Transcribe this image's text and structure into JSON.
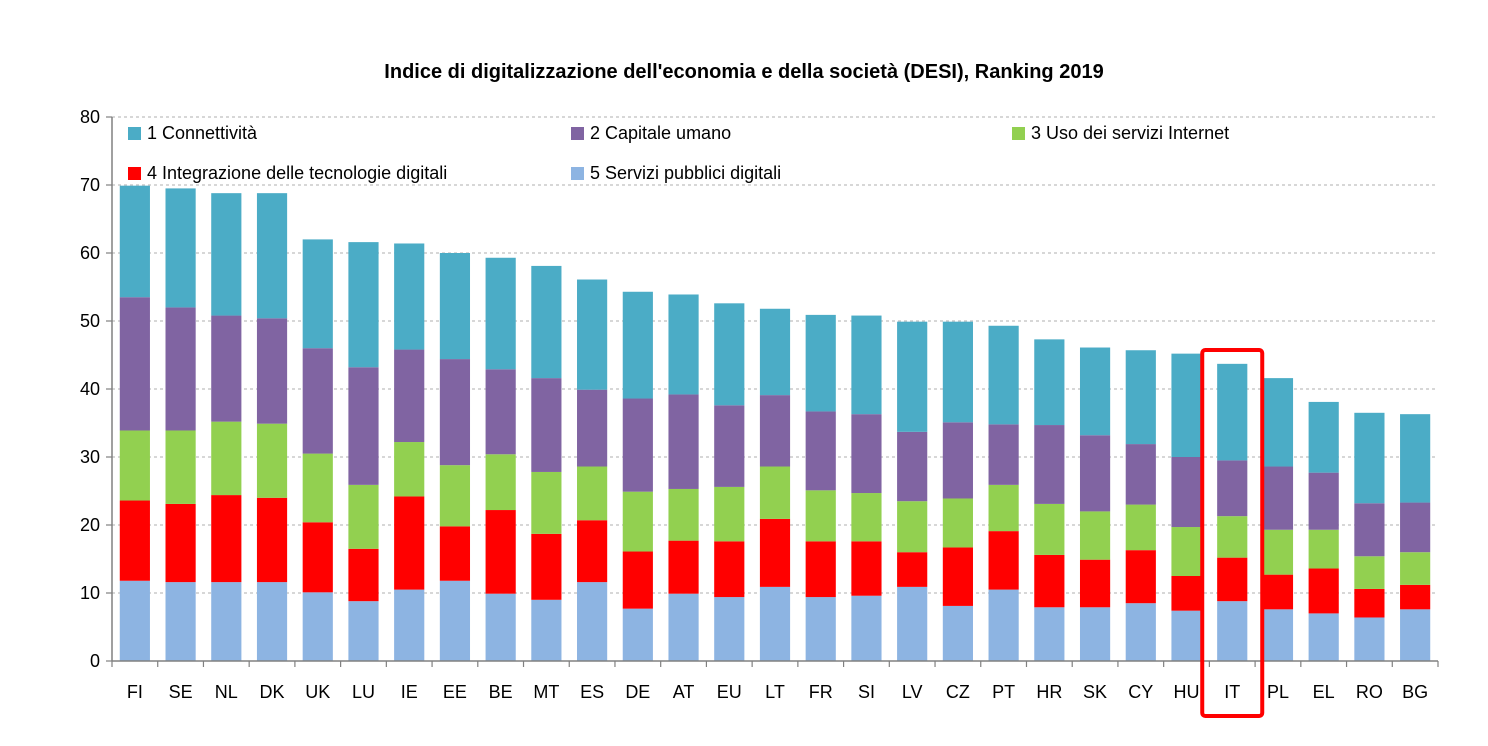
{
  "chart_data": {
    "type": "bar",
    "stacked": true,
    "title": "Indice di digitalizzazione dell'economia e della società (DESI), Ranking 2019",
    "xlabel": "",
    "ylabel": "",
    "ylim": [
      0,
      80
    ],
    "yticks": [
      0,
      10,
      20,
      30,
      40,
      50,
      60,
      70,
      80
    ],
    "grid": true,
    "legend_placement": "top",
    "highlight_category": "IT",
    "highlight_color": "#ff0000",
    "categories": [
      "FI",
      "SE",
      "NL",
      "DK",
      "UK",
      "LU",
      "IE",
      "EE",
      "BE",
      "MT",
      "ES",
      "DE",
      "AT",
      "EU",
      "LT",
      "FR",
      "SI",
      "LV",
      "CZ",
      "PT",
      "HR",
      "SK",
      "CY",
      "HU",
      "IT",
      "PL",
      "EL",
      "RO",
      "BG"
    ],
    "series": [
      {
        "name": "5 Servizi pubblici digitali",
        "color": "#8db4e2",
        "values": [
          11.8,
          11.6,
          11.6,
          11.6,
          10.1,
          8.8,
          10.5,
          11.8,
          9.9,
          9.0,
          11.6,
          7.7,
          9.9,
          9.4,
          10.9,
          9.4,
          9.6,
          10.9,
          8.1,
          10.5,
          7.9,
          7.9,
          8.5,
          7.4,
          8.8,
          7.6,
          7.0,
          6.4,
          7.6
        ]
      },
      {
        "name": "4 Integrazione delle tecnologie digitali",
        "color": "#ff0000",
        "values": [
          11.8,
          11.5,
          12.8,
          12.4,
          10.3,
          7.7,
          13.7,
          8.0,
          12.3,
          9.7,
          9.1,
          8.4,
          7.8,
          8.2,
          10.0,
          8.2,
          8.0,
          5.1,
          8.6,
          8.6,
          7.7,
          7.0,
          7.8,
          5.1,
          6.4,
          5.1,
          6.6,
          4.2,
          3.6
        ]
      },
      {
        "name": "3 Uso dei servizi Internet",
        "color": "#92d050",
        "values": [
          10.3,
          10.8,
          10.8,
          10.9,
          10.1,
          9.4,
          8.0,
          9.0,
          8.2,
          9.1,
          7.9,
          8.8,
          7.6,
          8.0,
          7.7,
          7.5,
          7.1,
          7.5,
          7.2,
          6.8,
          7.5,
          7.1,
          6.7,
          7.2,
          6.1,
          6.6,
          5.7,
          4.8,
          4.8
        ]
      },
      {
        "name": "2 Capitale umano",
        "color": "#8064a2",
        "values": [
          19.6,
          18.1,
          15.6,
          15.5,
          15.5,
          17.3,
          13.6,
          15.6,
          12.5,
          13.8,
          11.3,
          13.7,
          13.9,
          12.0,
          10.5,
          11.6,
          11.6,
          10.2,
          11.2,
          8.9,
          11.6,
          11.2,
          8.9,
          10.3,
          8.2,
          9.3,
          8.4,
          7.8,
          7.3
        ]
      },
      {
        "name": "1 Connettività",
        "color": "#4bacc6",
        "values": [
          16.4,
          17.5,
          18.0,
          18.4,
          16.0,
          18.4,
          15.6,
          15.6,
          16.4,
          16.5,
          16.2,
          15.7,
          14.7,
          15.0,
          12.7,
          14.2,
          14.5,
          16.2,
          14.8,
          14.5,
          12.6,
          12.9,
          13.8,
          15.2,
          14.2,
          13.0,
          10.4,
          13.3,
          13.0
        ]
      }
    ]
  }
}
